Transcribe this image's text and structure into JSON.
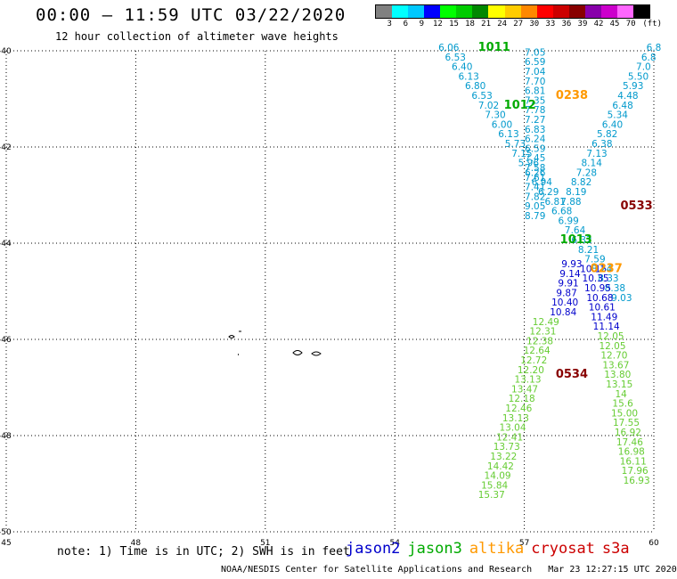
{
  "title": "00:00 – 11:59 UTC 03/22/2020",
  "subtitle": "12 hour collection of altimeter wave heights",
  "colorbar": {
    "colors": [
      "#808080",
      "#00ffff",
      "#00c8ff",
      "#0000ff",
      "#00ff00",
      "#00cc00",
      "#008800",
      "#ffff00",
      "#ffcc00",
      "#ff8800",
      "#ff0000",
      "#cc0000",
      "#880000",
      "#8800aa",
      "#cc00cc",
      "#ff66ff",
      "#000000"
    ],
    "labels": [
      "3",
      "6",
      "9",
      "12",
      "15",
      "18",
      "21",
      "24",
      "27",
      "30",
      "33",
      "36",
      "39",
      "42",
      "45",
      "70",
      "(ft)"
    ]
  },
  "note": "note: 1) Time is in UTC; 2) SWH is in feet",
  "legend": [
    {
      "label": "jason2",
      "color": "#0000cc"
    },
    {
      "label": "jason3",
      "color": "#00aa00"
    },
    {
      "label": "altika",
      "color": "#ff9900"
    },
    {
      "label": "cryosat",
      "color": "#cc0000"
    },
    {
      "label": "s3a",
      "color": "#cc0000"
    }
  ],
  "footer": "NOAA/NESDIS Center for Satellite Applications and Research   Mar 23 12:27:15 UTC 2020",
  "map": {
    "lon_range": [
      45,
      60
    ],
    "lat_range": [
      -50,
      -40
    ],
    "lon_ticks": [
      "45",
      "48",
      "51",
      "54",
      "57",
      "60"
    ],
    "lat_ticks": [
      "-40",
      "-42",
      "-44",
      "-46",
      "-48",
      "-50"
    ],
    "lon_tick_values": [
      45,
      48,
      51,
      54,
      57,
      60
    ],
    "lat_tick_values": [
      -40,
      -42,
      -44,
      -46,
      -48,
      -50
    ],
    "grid": true
  },
  "time_labels": [
    {
      "text": "1011",
      "lon": 56.3,
      "lat": -40.0,
      "color": "#00aa00"
    },
    {
      "text": "1012",
      "lon": 56.9,
      "lat": -41.2,
      "color": "#00aa00"
    },
    {
      "text": "0238",
      "lon": 58.1,
      "lat": -41.0,
      "color": "#ff9900"
    },
    {
      "text": "0533",
      "lon": 59.6,
      "lat": -43.3,
      "color": "#880000"
    },
    {
      "text": "1013",
      "lon": 58.2,
      "lat": -44.0,
      "color": "#00aa00"
    },
    {
      "text": "0237",
      "lon": 58.9,
      "lat": -44.6,
      "color": "#ff9900"
    },
    {
      "text": "0534",
      "lon": 58.1,
      "lat": -46.8,
      "color": "#880000"
    }
  ],
  "tracks": [
    {
      "name": "track1011",
      "color": "#0099cc",
      "start": [
        55.25,
        -40.0
      ],
      "step": [
        0.154,
        -0.2
      ],
      "values": [
        "6.06",
        "6.53",
        "6.40",
        "6.13",
        "6.80",
        "6.53",
        "7.02",
        "7.30",
        "6.00",
        "6.13",
        "5.73",
        "7.15",
        "5.96",
        "6.26",
        "6.94",
        "6.29",
        "6.81",
        "6.68",
        "6.99",
        "7.64",
        "6.32",
        "8.21",
        "7.59",
        "8.24",
        "8.33",
        "8.38",
        "9.03"
      ]
    },
    {
      "name": "track0238",
      "color": "#0099cc",
      "start": [
        57.25,
        -40.1
      ],
      "step": [
        0.0,
        -0.2
      ],
      "values": [
        "7.05",
        "6.59",
        "7.04",
        "7.70",
        "6.81",
        "7.35",
        "7.78",
        "7.27",
        "6.83",
        "6.24",
        "6.59",
        "7.45",
        "7.58",
        "7.61",
        "7.41",
        "7.82",
        "9.05",
        "8.79"
      ]
    },
    {
      "name": "track0533",
      "color": "#0099cc",
      "start": [
        60.0,
        -40.0
      ],
      "step": [
        -0.12,
        -0.2
      ],
      "values": [
        "6.8",
        "6.8",
        "7.0",
        "5.50",
        "5.93",
        "4.48",
        "6.48",
        "5.34",
        "6.40",
        "5.82",
        "6.38",
        "7.13",
        "8.14",
        "7.28",
        "8.82",
        "8.19",
        "7.88"
      ]
    },
    {
      "name": "track_j2",
      "color": "#0000cc",
      "start": [
        58.1,
        -44.5
      ],
      "step": [
        -0.04,
        -0.2
      ],
      "values": [
        "9.93",
        "9.14",
        "9.91",
        "9.87",
        "10.40",
        "10.84"
      ]
    },
    {
      "name": "track_j2b",
      "color": "#0000cc",
      "start": [
        58.6,
        -44.6
      ],
      "step": [
        0.05,
        -0.2
      ],
      "values": [
        "10.15",
        "10.35",
        "10.95",
        "10.68",
        "10.61",
        "11.49",
        "11.14"
      ]
    },
    {
      "name": "track1012",
      "color": "#66cc33",
      "start": [
        57.5,
        -45.7
      ],
      "step": [
        -0.07,
        -0.2
      ],
      "values": [
        "12.49",
        "12.31",
        "12.38",
        "12.64",
        "12.72",
        "12.20",
        "13.13",
        "13.47",
        "12.18",
        "12.46",
        "13.13",
        "13.04",
        "12.41",
        "13.73",
        "13.22",
        "14.42",
        "14.09",
        "15.84",
        "15.37"
      ]
    },
    {
      "name": "track0534",
      "color": "#66cc33",
      "start": [
        59.0,
        -46.0
      ],
      "step": [
        0.04,
        -0.2
      ],
      "values": [
        "12.05",
        "12.05",
        "12.70",
        "13.67",
        "13.80",
        "13.15",
        "14",
        "15.6",
        "15.00",
        "17.55",
        "16.92",
        "17.46",
        "16.98",
        "16.11",
        "17.96",
        "16.93"
      ]
    }
  ]
}
